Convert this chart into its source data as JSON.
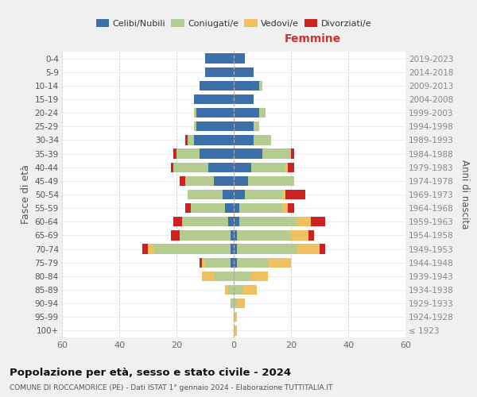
{
  "age_groups": [
    "100+",
    "95-99",
    "90-94",
    "85-89",
    "80-84",
    "75-79",
    "70-74",
    "65-69",
    "60-64",
    "55-59",
    "50-54",
    "45-49",
    "40-44",
    "35-39",
    "30-34",
    "25-29",
    "20-24",
    "15-19",
    "10-14",
    "5-9",
    "0-4"
  ],
  "birth_years": [
    "≤ 1923",
    "1924-1928",
    "1929-1933",
    "1934-1938",
    "1939-1943",
    "1944-1948",
    "1949-1953",
    "1954-1958",
    "1959-1963",
    "1964-1968",
    "1969-1973",
    "1974-1978",
    "1979-1983",
    "1984-1988",
    "1989-1993",
    "1994-1998",
    "1999-2003",
    "2004-2008",
    "2009-2013",
    "2014-2018",
    "2019-2023"
  ],
  "male_celibi": [
    0,
    0,
    0,
    0,
    0,
    1,
    1,
    1,
    2,
    3,
    4,
    7,
    9,
    12,
    14,
    13,
    13,
    14,
    12,
    10,
    10
  ],
  "male_coniugati": [
    0,
    0,
    1,
    2,
    7,
    9,
    27,
    18,
    16,
    12,
    12,
    10,
    12,
    8,
    2,
    1,
    1,
    0,
    0,
    0,
    0
  ],
  "male_vedovi": [
    0,
    0,
    0,
    1,
    4,
    1,
    2,
    0,
    0,
    0,
    0,
    0,
    0,
    0,
    0,
    0,
    0,
    0,
    0,
    0,
    0
  ],
  "male_divorziati": [
    0,
    0,
    0,
    0,
    0,
    1,
    2,
    3,
    3,
    2,
    0,
    2,
    1,
    1,
    1,
    0,
    0,
    0,
    0,
    0,
    0
  ],
  "female_nubili": [
    0,
    0,
    0,
    0,
    0,
    1,
    1,
    1,
    2,
    2,
    4,
    5,
    6,
    10,
    7,
    7,
    9,
    7,
    9,
    7,
    4
  ],
  "female_coniugate": [
    0,
    0,
    1,
    3,
    6,
    11,
    21,
    19,
    20,
    15,
    13,
    16,
    12,
    10,
    6,
    2,
    2,
    0,
    1,
    0,
    0
  ],
  "female_vedove": [
    1,
    1,
    3,
    5,
    6,
    8,
    8,
    6,
    5,
    2,
    1,
    0,
    1,
    0,
    0,
    0,
    0,
    0,
    0,
    0,
    0
  ],
  "female_divorziate": [
    0,
    0,
    0,
    0,
    0,
    0,
    2,
    2,
    5,
    2,
    7,
    0,
    2,
    1,
    0,
    0,
    0,
    0,
    0,
    0,
    0
  ],
  "color_celibi": "#3d6fa8",
  "color_coniugati": "#b5cc90",
  "color_vedovi": "#f0c060",
  "color_divorziati": "#cc2222",
  "xlim": 60,
  "title": "Popolazione per età, sesso e stato civile - 2024",
  "subtitle": "COMUNE DI ROCCAMORICE (PE) - Dati ISTAT 1° gennaio 2024 - Elaborazione TUTTITALIA.IT",
  "ylabel_left": "Fasce di età",
  "ylabel_right": "Anni di nascita",
  "label_femmine": "Femmine",
  "legend_labels": [
    "Celibi/Nubili",
    "Coniugati/e",
    "Vedovi/e",
    "Divorziati/e"
  ],
  "bg_color": "#f0f0f0",
  "plot_bg": "#ffffff"
}
